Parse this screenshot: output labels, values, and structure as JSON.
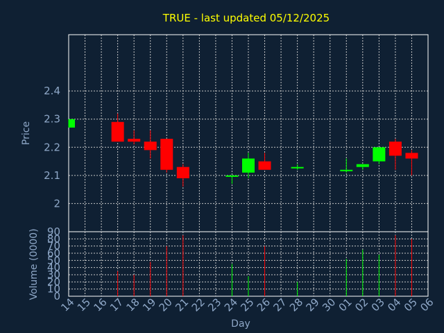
{
  "title": "TRUE - last updated 05/12/2025",
  "colors": {
    "background": "#0f2033",
    "title": "#ffff00",
    "axis_text": "#8fa8c8",
    "frame": "#ffffff",
    "up": "#00ff00",
    "down": "#ff0000"
  },
  "chart_data": [
    {
      "type": "candlestick",
      "ylabel": "Price",
      "ylim": [
        1.9,
        2.6
      ],
      "yticks": [
        "2",
        "2.1",
        "2.2",
        "2.3",
        "2.4"
      ],
      "grid": true,
      "x_labels": [
        "14",
        "15",
        "16",
        "17",
        "18",
        "19",
        "20",
        "21",
        "22",
        "23",
        "24",
        "25",
        "26",
        "27",
        "28",
        "29",
        "30",
        "01",
        "02",
        "03",
        "04",
        "05",
        "06"
      ],
      "candles": [
        {
          "day": "14",
          "open": 2.27,
          "high": 2.3,
          "low": 2.27,
          "close": 2.3
        },
        {
          "day": "17",
          "open": 2.29,
          "high": 2.32,
          "low": 2.22,
          "close": 2.22
        },
        {
          "day": "18",
          "open": 2.23,
          "high": 2.26,
          "low": 2.21,
          "close": 2.22
        },
        {
          "day": "19",
          "open": 2.22,
          "high": 2.26,
          "low": 2.16,
          "close": 2.19
        },
        {
          "day": "20",
          "open": 2.23,
          "high": 2.23,
          "low": 2.11,
          "close": 2.12
        },
        {
          "day": "21",
          "open": 2.13,
          "high": 2.14,
          "low": 2.06,
          "close": 2.09
        },
        {
          "day": "24",
          "open": 2.095,
          "high": 2.1,
          "low": 2.07,
          "close": 2.1
        },
        {
          "day": "25",
          "open": 2.11,
          "high": 2.18,
          "low": 2.09,
          "close": 2.16
        },
        {
          "day": "26",
          "open": 2.15,
          "high": 2.18,
          "low": 2.12,
          "close": 2.12
        },
        {
          "day": "28",
          "open": 2.125,
          "high": 2.14,
          "low": 2.12,
          "close": 2.13
        },
        {
          "day": "01",
          "open": 2.115,
          "high": 2.16,
          "low": 2.11,
          "close": 2.12
        },
        {
          "day": "02",
          "open": 2.13,
          "high": 2.14,
          "low": 2.12,
          "close": 2.14
        },
        {
          "day": "03",
          "open": 2.15,
          "high": 2.2,
          "low": 2.14,
          "close": 2.2
        },
        {
          "day": "04",
          "open": 2.22,
          "high": 2.23,
          "low": 2.12,
          "close": 2.17
        },
        {
          "day": "05",
          "open": 2.18,
          "high": 2.19,
          "low": 2.1,
          "close": 2.16
        }
      ]
    },
    {
      "type": "bar",
      "xlabel": "Day",
      "ylabel": "Volume (0000)",
      "ylim": [
        0,
        90
      ],
      "yticks": [
        "0",
        "10",
        "20",
        "30",
        "40",
        "50",
        "60",
        "70",
        "80",
        "90"
      ],
      "grid": true,
      "volumes": [
        {
          "day": "17",
          "value": 35,
          "direction": "down"
        },
        {
          "day": "18",
          "value": 30,
          "direction": "down"
        },
        {
          "day": "19",
          "value": 48,
          "direction": "down"
        },
        {
          "day": "20",
          "value": 70,
          "direction": "down"
        },
        {
          "day": "21",
          "value": 85,
          "direction": "down"
        },
        {
          "day": "24",
          "value": 45,
          "direction": "up"
        },
        {
          "day": "25",
          "value": 28,
          "direction": "up"
        },
        {
          "day": "26",
          "value": 70,
          "direction": "down"
        },
        {
          "day": "28",
          "value": 20,
          "direction": "up"
        },
        {
          "day": "01",
          "value": 52,
          "direction": "up"
        },
        {
          "day": "02",
          "value": 65,
          "direction": "up"
        },
        {
          "day": "03",
          "value": 58,
          "direction": "up"
        },
        {
          "day": "04",
          "value": 85,
          "direction": "down"
        },
        {
          "day": "05",
          "value": 80,
          "direction": "down"
        }
      ]
    }
  ]
}
